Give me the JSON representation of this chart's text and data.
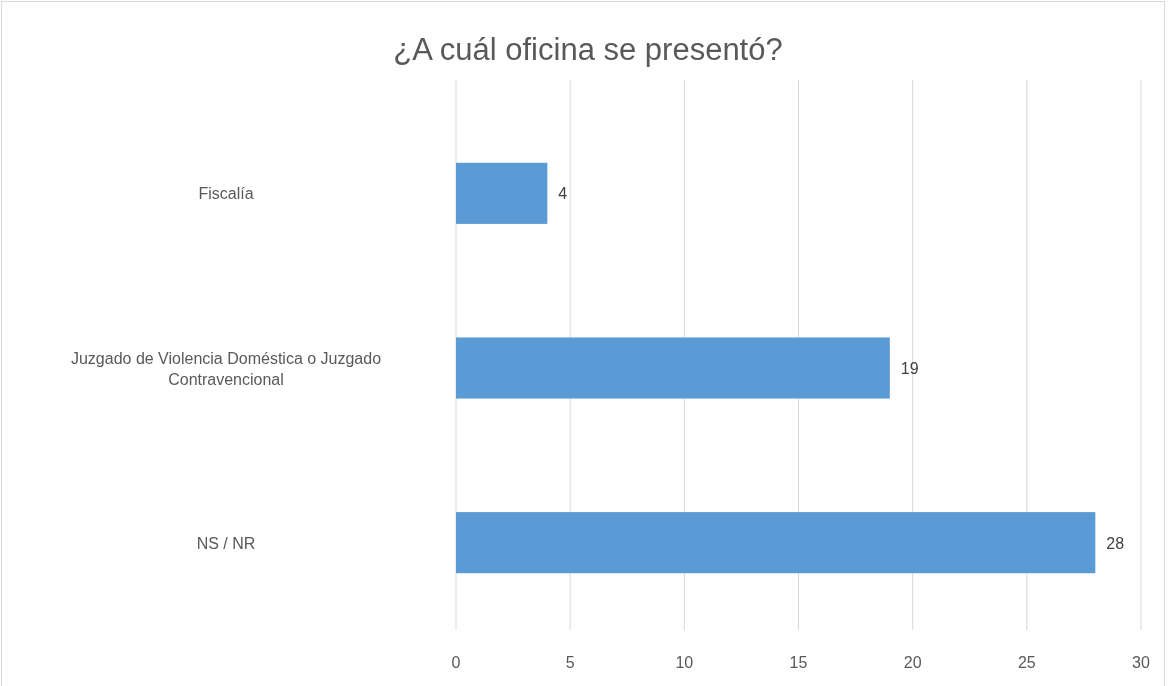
{
  "chart_data": {
    "type": "bar",
    "title": "¿A cuál oficina se presentó?",
    "orientation": "horizontal",
    "categories": [
      "Fiscalía",
      "Juzgado de Violencia Doméstica o Juzgado Contravencional",
      "NS / NR"
    ],
    "values": [
      4,
      19,
      28
    ],
    "color": "#5b9bd5",
    "xlim": [
      0,
      30
    ],
    "xticks": [
      0,
      5,
      10,
      15,
      20,
      25,
      30
    ],
    "grid": "x",
    "data_labels": true
  }
}
